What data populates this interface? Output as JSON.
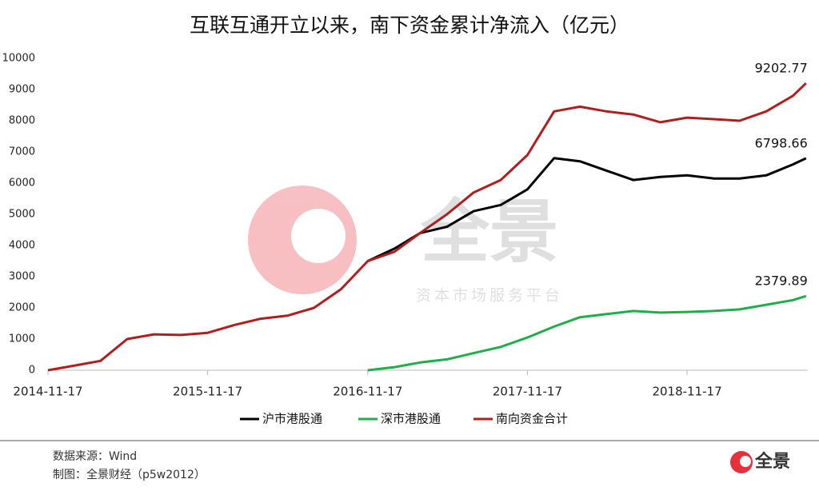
{
  "chart_data": {
    "type": "line",
    "title": "互联互通开立以来，南下资金累计净流入（亿元）",
    "x": [
      "2014-11-17",
      "2015-01-17",
      "2015-03-17",
      "2015-05-17",
      "2015-07-17",
      "2015-09-17",
      "2015-11-17",
      "2016-01-17",
      "2016-03-17",
      "2016-05-17",
      "2016-07-17",
      "2016-09-17",
      "2016-11-17",
      "2017-01-17",
      "2017-03-17",
      "2017-05-17",
      "2017-07-17",
      "2017-09-17",
      "2017-11-17",
      "2018-01-17",
      "2018-03-17",
      "2018-05-17",
      "2018-07-17",
      "2018-09-17",
      "2018-11-17",
      "2019-01-17",
      "2019-03-17",
      "2019-05-17",
      "2019-07-17",
      "2019-08-16"
    ],
    "series": [
      {
        "name": "沪市港股通",
        "color": "#000000",
        "values": [
          null,
          null,
          null,
          null,
          null,
          null,
          null,
          null,
          null,
          null,
          null,
          null,
          3500,
          3900,
          4400,
          4600,
          5100,
          5300,
          5800,
          6800,
          6700,
          6400,
          6100,
          6200,
          6250,
          6150,
          6150,
          6250,
          6600,
          6798.66
        ]
      },
      {
        "name": "深市港股通",
        "color": "#1fae4b",
        "values": [
          null,
          null,
          null,
          null,
          null,
          null,
          null,
          null,
          null,
          null,
          null,
          null,
          0,
          100,
          250,
          350,
          550,
          750,
          1050,
          1400,
          1700,
          1800,
          1900,
          1850,
          1870,
          1900,
          1950,
          2100,
          2250,
          2379.89
        ]
      },
      {
        "name": "南向资金合计",
        "color": "#b01e1e",
        "values": [
          0,
          150,
          300,
          1000,
          1150,
          1130,
          1200,
          1450,
          1650,
          1750,
          2000,
          2600,
          3500,
          3800,
          4400,
          5000,
          5700,
          6100,
          6900,
          8300,
          8450,
          8300,
          8200,
          7950,
          8100,
          8050,
          8000,
          8300,
          8800,
          9202.77
        ]
      }
    ],
    "xlim": [
      "2014-11-17",
      "2019-08-20"
    ],
    "xticks": [
      "2014-11-17",
      "2015-11-17",
      "2016-11-17",
      "2017-11-17",
      "2018-11-17"
    ],
    "ylim": [
      0,
      10000
    ],
    "yticks": [
      0,
      1000,
      2000,
      3000,
      4000,
      5000,
      6000,
      7000,
      8000,
      9000,
      10000
    ],
    "legend": "bottom",
    "source": "数据来源：Wind",
    "credit": "制图：全景财经（p5w2012）",
    "watermark": {
      "title": "全景",
      "subtitle": "资本市场服务平台"
    }
  }
}
